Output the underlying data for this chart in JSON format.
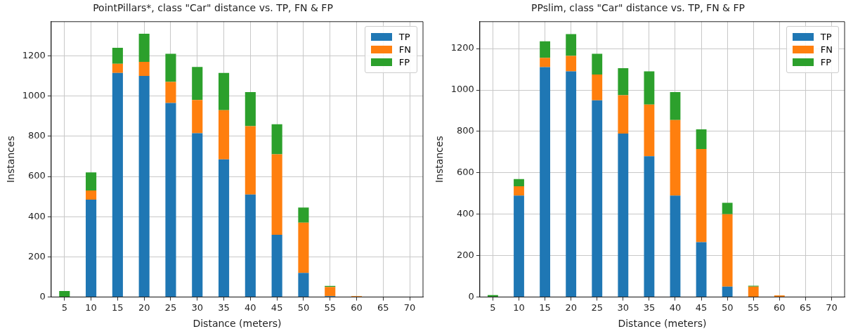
{
  "chart_data": [
    {
      "type": "bar",
      "title": "PointPillars*, class \"Car\" distance vs. TP, FN & FP",
      "xlabel": "Distance (meters)",
      "ylabel": "Instances",
      "stacked": true,
      "grid": true,
      "legend": "top right",
      "categories": [
        "5",
        "10",
        "15",
        "20",
        "25",
        "30",
        "35",
        "40",
        "45",
        "50",
        "55",
        "60",
        "65",
        "70"
      ],
      "ylim": [
        0,
        1370
      ],
      "yticks": [
        0,
        200,
        400,
        600,
        800,
        1000,
        1200
      ],
      "series": [
        {
          "name": "TP",
          "color": "#1f77b4",
          "values": [
            0,
            485,
            1115,
            1100,
            965,
            815,
            685,
            510,
            310,
            120,
            5,
            0,
            0,
            0
          ]
        },
        {
          "name": "FN",
          "color": "#ff7f0e",
          "values": [
            0,
            45,
            45,
            70,
            105,
            165,
            245,
            340,
            400,
            250,
            45,
            5,
            0,
            0
          ]
        },
        {
          "name": "FP",
          "color": "#2ca02c",
          "values": [
            30,
            90,
            80,
            140,
            140,
            165,
            185,
            170,
            150,
            75,
            5,
            0,
            0,
            0
          ]
        }
      ]
    },
    {
      "type": "bar",
      "title": "PPslim, class \"Car\" distance vs. TP, FN & FP",
      "xlabel": "Distance (meters)",
      "ylabel": "Instances",
      "stacked": true,
      "grid": true,
      "legend": "top right",
      "categories": [
        "5",
        "10",
        "15",
        "20",
        "25",
        "30",
        "35",
        "40",
        "45",
        "50",
        "55",
        "60",
        "65",
        "70"
      ],
      "ylim": [
        0,
        1330
      ],
      "yticks": [
        0,
        200,
        400,
        600,
        800,
        1000,
        1200
      ],
      "series": [
        {
          "name": "TP",
          "color": "#1f77b4",
          "values": [
            0,
            490,
            1110,
            1090,
            950,
            790,
            680,
            490,
            265,
            50,
            0,
            0,
            0,
            0
          ]
        },
        {
          "name": "FN",
          "color": "#ff7f0e",
          "values": [
            0,
            45,
            45,
            75,
            125,
            185,
            250,
            365,
            450,
            350,
            50,
            8,
            0,
            0
          ]
        },
        {
          "name": "FP",
          "color": "#2ca02c",
          "values": [
            10,
            35,
            80,
            105,
            100,
            130,
            160,
            135,
            95,
            55,
            5,
            0,
            0,
            0
          ]
        }
      ]
    }
  ]
}
